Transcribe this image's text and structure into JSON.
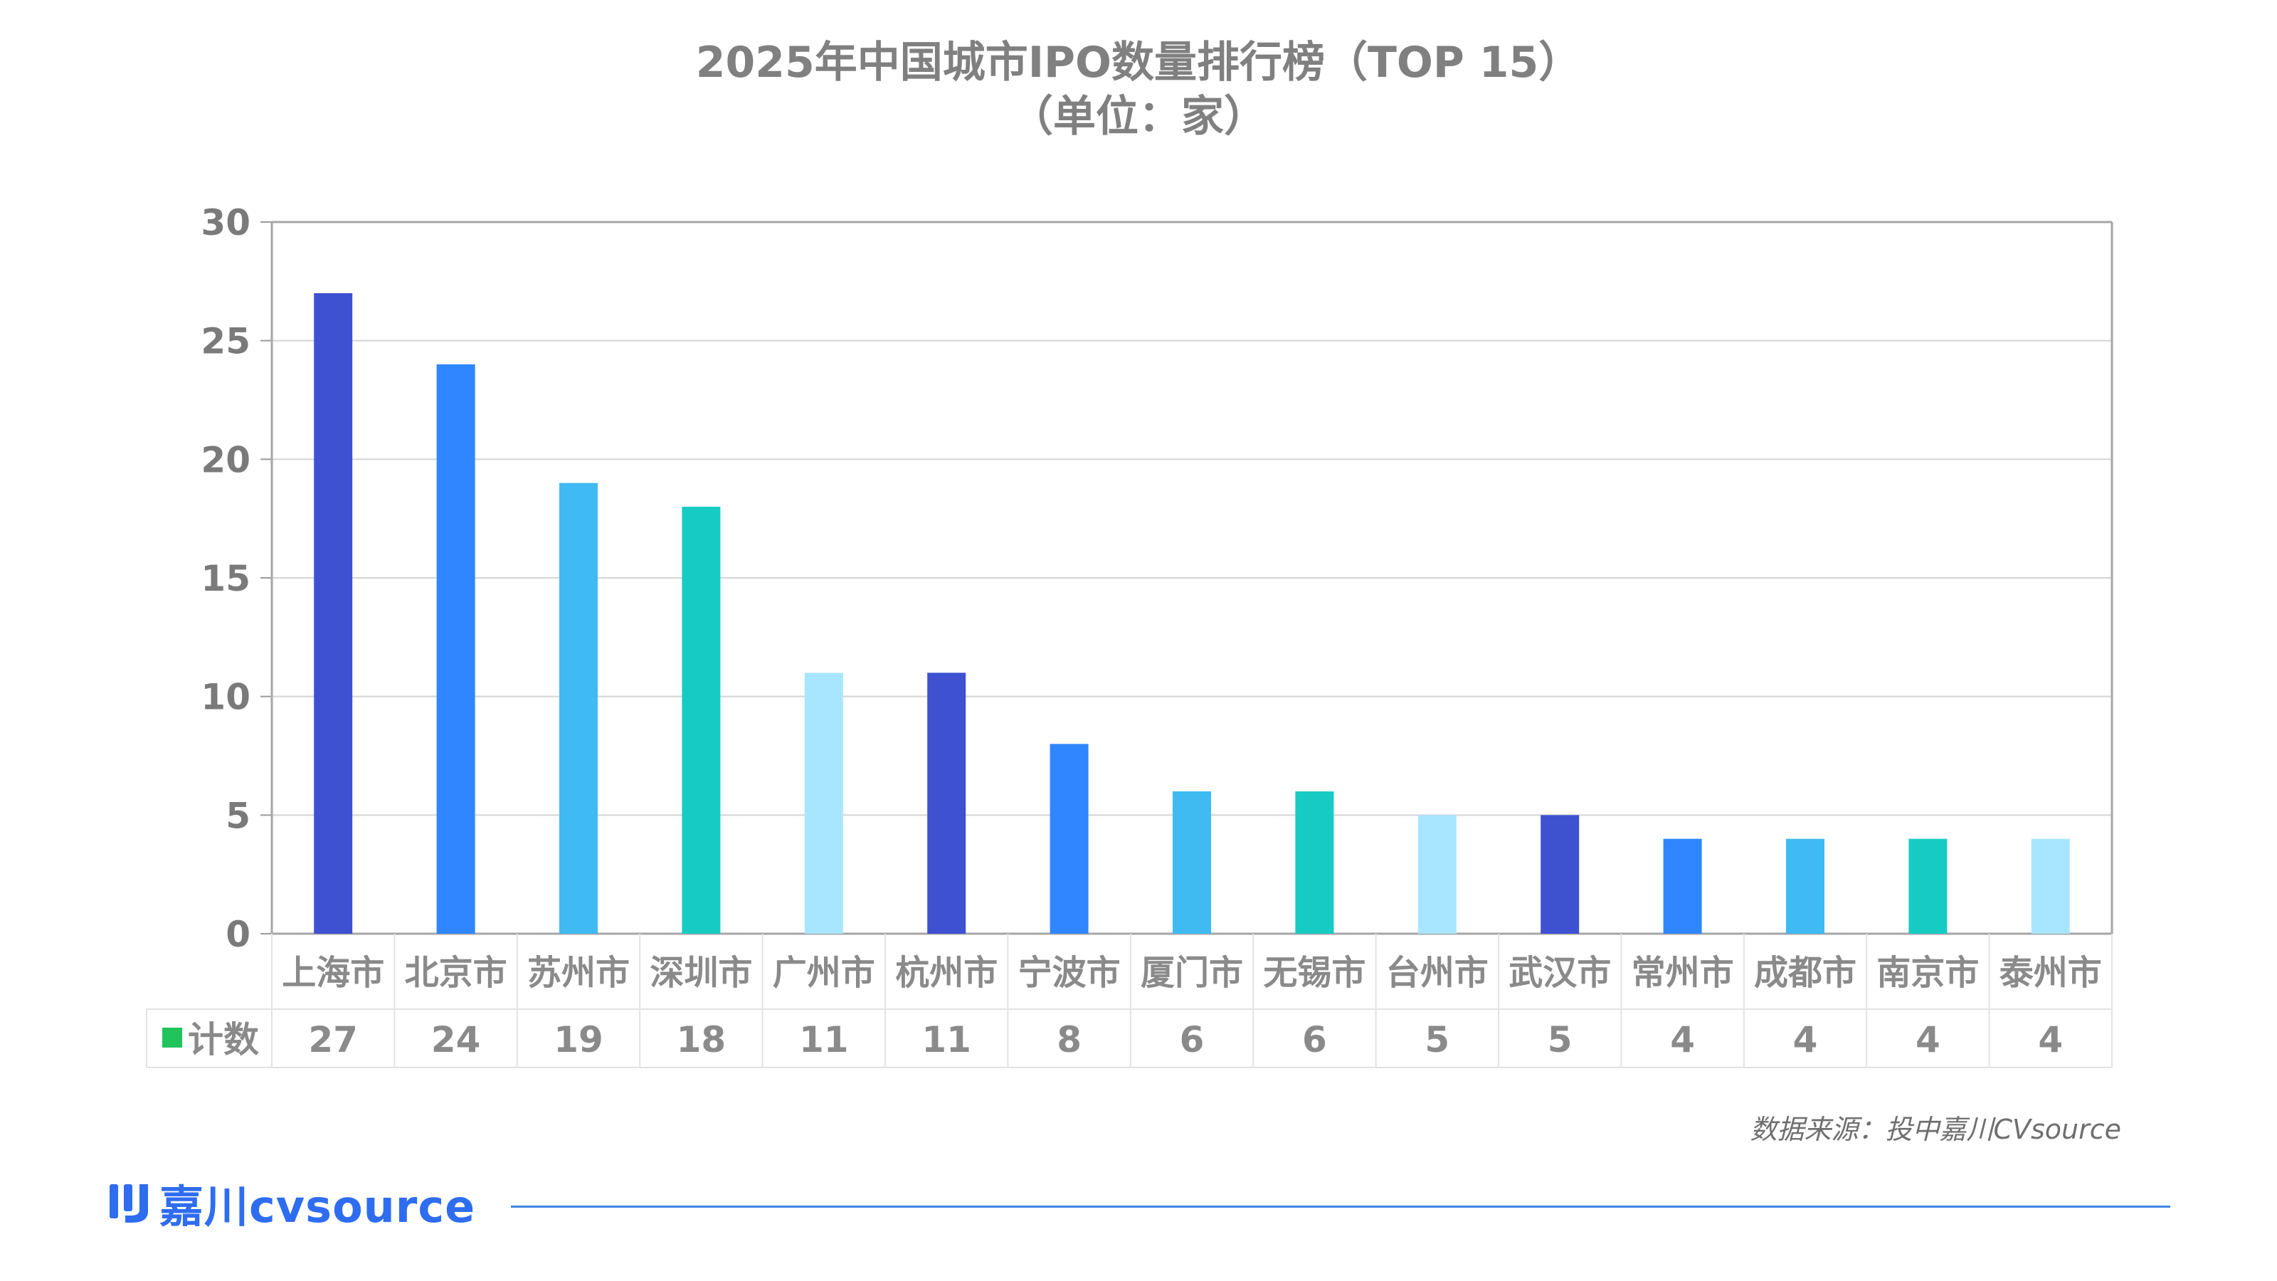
{
  "title": {
    "line1": "2025年中国城市IPO数量排行榜（TOP 15）",
    "line2": "（单位：家）"
  },
  "source": "数据来源：投中嘉川CVsource",
  "logo": {
    "text": "嘉川cvsource",
    "color": "#2f6df0"
  },
  "chart_data": {
    "type": "bar",
    "title": "2025年中国城市IPO数量排行榜（TOP 15）",
    "subtitle": "（单位：家）",
    "categories": [
      "上海市",
      "北京市",
      "苏州市",
      "深圳市",
      "广州市",
      "杭州市",
      "宁波市",
      "厦门市",
      "无锡市",
      "台州市",
      "武汉市",
      "常州市",
      "成都市",
      "南京市",
      "泰州市"
    ],
    "series": [
      {
        "name": "计数",
        "legend_color": "#21c35b",
        "values": [
          27,
          24,
          19,
          18,
          11,
          11,
          8,
          6,
          6,
          5,
          5,
          4,
          4,
          4,
          4
        ],
        "bar_colors": [
          "#3d51d1",
          "#2f86ff",
          "#3fbaf2",
          "#17cbc5",
          "#a8e6ff",
          "#3d51d1",
          "#2f86ff",
          "#3fbaf2",
          "#17cbc5",
          "#a8e6ff",
          "#3d51d1",
          "#2f86ff",
          "#3fbaf2",
          "#17cbc5",
          "#a8e6ff"
        ]
      }
    ],
    "ylim": [
      0,
      30
    ],
    "yticks": [
      0,
      5,
      10,
      15,
      20,
      25,
      30
    ],
    "xlabel": "",
    "ylabel": "",
    "grid": true,
    "data_table": true
  }
}
